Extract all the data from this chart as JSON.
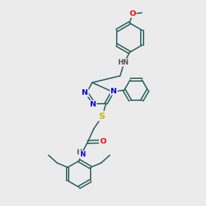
{
  "background_color": "#ebebeb",
  "atom_colors": {
    "N": "#0000dd",
    "O": "#ff0000",
    "S": "#bbbb00",
    "C": "#2a6060",
    "H": "#555555"
  },
  "bond_color": "#2a6060",
  "lw": 1.3,
  "fs": 8.0,
  "fs_small": 7.0
}
